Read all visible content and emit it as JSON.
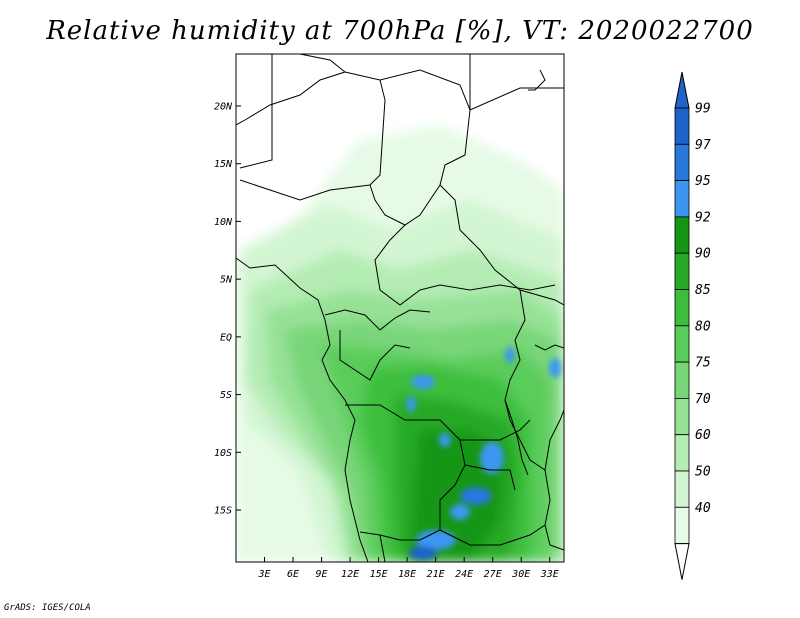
{
  "title": "Relative humidity at 700hPa [%], VT: 2020022700",
  "credit": "GrADS: IGES/COLA",
  "map": {
    "lon_range": [
      0,
      34.5
    ],
    "lat_range": [
      -19.5,
      24.5
    ],
    "lat_ticks": [
      {
        "value": 20,
        "label": "20N"
      },
      {
        "value": 15,
        "label": "15N"
      },
      {
        "value": 10,
        "label": "10N"
      },
      {
        "value": 5,
        "label": "5N"
      },
      {
        "value": 0,
        "label": "EQ"
      },
      {
        "value": -5,
        "label": "5S"
      },
      {
        "value": -10,
        "label": "10S"
      },
      {
        "value": -15,
        "label": "15S"
      }
    ],
    "lon_ticks": [
      {
        "value": 3,
        "label": "3E"
      },
      {
        "value": 6,
        "label": "6E"
      },
      {
        "value": 9,
        "label": "9E"
      },
      {
        "value": 12,
        "label": "12E"
      },
      {
        "value": 15,
        "label": "15E"
      },
      {
        "value": 18,
        "label": "18E"
      },
      {
        "value": 21,
        "label": "21E"
      },
      {
        "value": 24,
        "label": "24E"
      },
      {
        "value": 27,
        "label": "27E"
      },
      {
        "value": 30,
        "label": "30E"
      },
      {
        "value": 33,
        "label": "33E"
      }
    ]
  },
  "colorbar": {
    "levels": [
      {
        "label": "40",
        "color": "#e6fae6"
      },
      {
        "label": "50",
        "color": "#d2f5d2"
      },
      {
        "label": "60",
        "color": "#b4ecb4"
      },
      {
        "label": "70",
        "color": "#96e196"
      },
      {
        "label": "75",
        "color": "#78d678"
      },
      {
        "label": "80",
        "color": "#5acc5a"
      },
      {
        "label": "85",
        "color": "#3cbe3c"
      },
      {
        "label": "90",
        "color": "#28aa28"
      },
      {
        "label": "92",
        "color": "#149614"
      },
      {
        "label": "95",
        "color": "#3c96f0"
      },
      {
        "label": "97",
        "color": "#2878dc"
      },
      {
        "label": "99",
        "color": "#1e64c8"
      }
    ],
    "bottom_color": "#ffffff",
    "top_color": "#1e64c8"
  }
}
